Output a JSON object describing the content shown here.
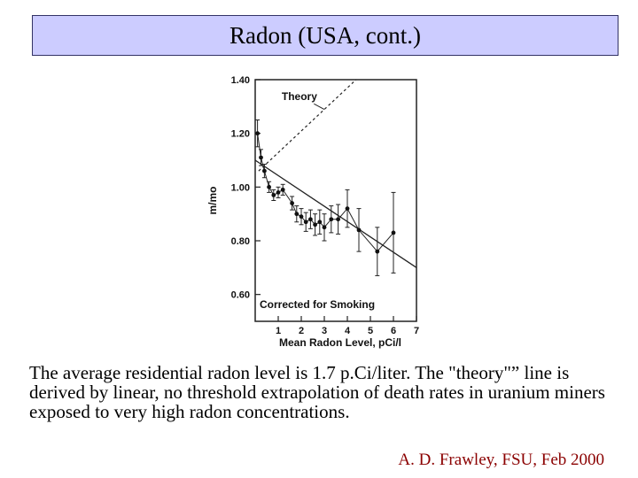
{
  "slide": {
    "title": "Radon (USA, cont.)",
    "caption": "The average residential radon level is 1.7 p.Ci/liter. The \"theory\"” line is derived by linear, no threshold extrapolation of death rates in uranium miners exposed to very high radon concentrations.",
    "credit": "A. D. Frawley, FSU, Feb 2000",
    "credit_color": "#8b0000",
    "title_bg": "#ccccff"
  },
  "chart_data": {
    "type": "scatter",
    "xlabel": "Mean Radon Level, pCi/l",
    "ylabel": "m/mo",
    "xlim": [
      0,
      7
    ],
    "ylim": [
      0.5,
      1.4
    ],
    "xticks": [
      "1",
      "2",
      "3",
      "4",
      "5",
      "6",
      "7"
    ],
    "yticks": [
      "0.60",
      "0.80",
      "1.00",
      "1.20",
      "1.40"
    ],
    "annotation": "Corrected for Smoking",
    "theory_label": "Theory",
    "grid": false,
    "series": [
      {
        "points": [
          {
            "x": 0.1,
            "y": 1.2,
            "err": 0.05
          },
          {
            "x": 0.25,
            "y": 1.11,
            "err": 0.03
          },
          {
            "x": 0.4,
            "y": 1.06,
            "err": 0.025
          },
          {
            "x": 0.6,
            "y": 1.0,
            "err": 0.02
          },
          {
            "x": 0.8,
            "y": 0.97,
            "err": 0.02
          },
          {
            "x": 1.0,
            "y": 0.98,
            "err": 0.02
          },
          {
            "x": 1.2,
            "y": 0.99,
            "err": 0.02
          },
          {
            "x": 1.6,
            "y": 0.94,
            "err": 0.025
          },
          {
            "x": 1.8,
            "y": 0.9,
            "err": 0.03
          },
          {
            "x": 2.0,
            "y": 0.89,
            "err": 0.03
          },
          {
            "x": 2.2,
            "y": 0.87,
            "err": 0.035
          },
          {
            "x": 2.4,
            "y": 0.88,
            "err": 0.035
          },
          {
            "x": 2.6,
            "y": 0.86,
            "err": 0.04
          },
          {
            "x": 2.8,
            "y": 0.87,
            "err": 0.045
          },
          {
            "x": 3.0,
            "y": 0.85,
            "err": 0.05
          },
          {
            "x": 3.3,
            "y": 0.88,
            "err": 0.05
          },
          {
            "x": 3.6,
            "y": 0.88,
            "err": 0.055
          },
          {
            "x": 4.0,
            "y": 0.92,
            "err": 0.07
          },
          {
            "x": 4.5,
            "y": 0.84,
            "err": 0.08
          },
          {
            "x": 5.3,
            "y": 0.76,
            "err": 0.09
          },
          {
            "x": 6.0,
            "y": 0.83,
            "err": 0.15
          }
        ]
      },
      {
        "style": "solid",
        "points": [
          {
            "x": 0,
            "y": 1.1
          },
          {
            "x": 7,
            "y": 0.7
          }
        ]
      },
      {
        "style": "dashed",
        "points": [
          {
            "x": 0.15,
            "y": 1.06
          },
          {
            "x": 5.0,
            "y": 1.45
          }
        ]
      }
    ]
  }
}
